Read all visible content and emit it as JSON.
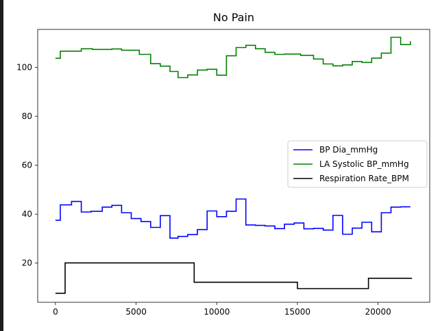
{
  "chart_data": {
    "type": "line",
    "title": "No Pain",
    "xlabel": "",
    "ylabel": "",
    "xlim": [
      -1100,
      23200
    ],
    "ylim": [
      4,
      115.5
    ],
    "xticks": [
      0,
      5000,
      10000,
      15000,
      20000
    ],
    "yticks": [
      20,
      40,
      60,
      80,
      100
    ],
    "grid": false,
    "legend_position": "center-right",
    "series": [
      {
        "name": "BP Dia_mmHg",
        "color": "#0000ff",
        "x": [
          0,
          300,
          1000,
          1600,
          2200,
          2900,
          3500,
          4100,
          4700,
          5300,
          5900,
          6500,
          7100,
          7600,
          8200,
          8800,
          9400,
          10000,
          10600,
          11200,
          11800,
          12400,
          13000,
          13600,
          14200,
          14800,
          15400,
          16000,
          16600,
          17200,
          17800,
          18400,
          19000,
          19600,
          20200,
          20800,
          21400,
          22000
        ],
        "y": [
          37.5,
          43.8,
          45.2,
          40.9,
          41.2,
          42.9,
          43.6,
          40.6,
          38.2,
          37,
          34.6,
          39.4,
          30.2,
          30.9,
          31.7,
          33.7,
          41.3,
          39,
          41.2,
          46.2,
          35.6,
          35.4,
          35.2,
          34.1,
          35.9,
          36.4,
          34,
          34.2,
          33.5,
          39.5,
          31.8,
          34.3,
          36.7,
          32.8,
          40.6,
          42.9,
          43,
          43
        ]
      },
      {
        "name": "LA Systolic BP_mmHg",
        "color": "#008000",
        "x": [
          0,
          300,
          1600,
          2300,
          3500,
          4100,
          5200,
          5900,
          6500,
          7100,
          7600,
          8200,
          8800,
          9400,
          10000,
          10600,
          11200,
          11800,
          12400,
          13000,
          13600,
          14200,
          15200,
          15400,
          16000,
          16600,
          17200,
          17800,
          18400,
          19000,
          19600,
          20200,
          20800,
          21400,
          22000
        ],
        "y": [
          103.7,
          106.6,
          107.6,
          107.3,
          107.5,
          107,
          105.3,
          101.5,
          100.5,
          98.3,
          95.8,
          96.9,
          98.9,
          99.2,
          96.8,
          104.7,
          108.1,
          109,
          107.6,
          106.1,
          105.3,
          105.4,
          104.9,
          104.9,
          103.4,
          101.4,
          100.6,
          101,
          102.4,
          102,
          103.8,
          105.8,
          112.3,
          109.3,
          110.7
        ]
      },
      {
        "name": "Respiration Rate_BPM",
        "color": "#000000",
        "x": [
          0,
          600,
          8600,
          15000,
          19400,
          22100
        ],
        "y": [
          7.7,
          20.1,
          12.2,
          9.6,
          13.8,
          13.8
        ]
      }
    ]
  }
}
